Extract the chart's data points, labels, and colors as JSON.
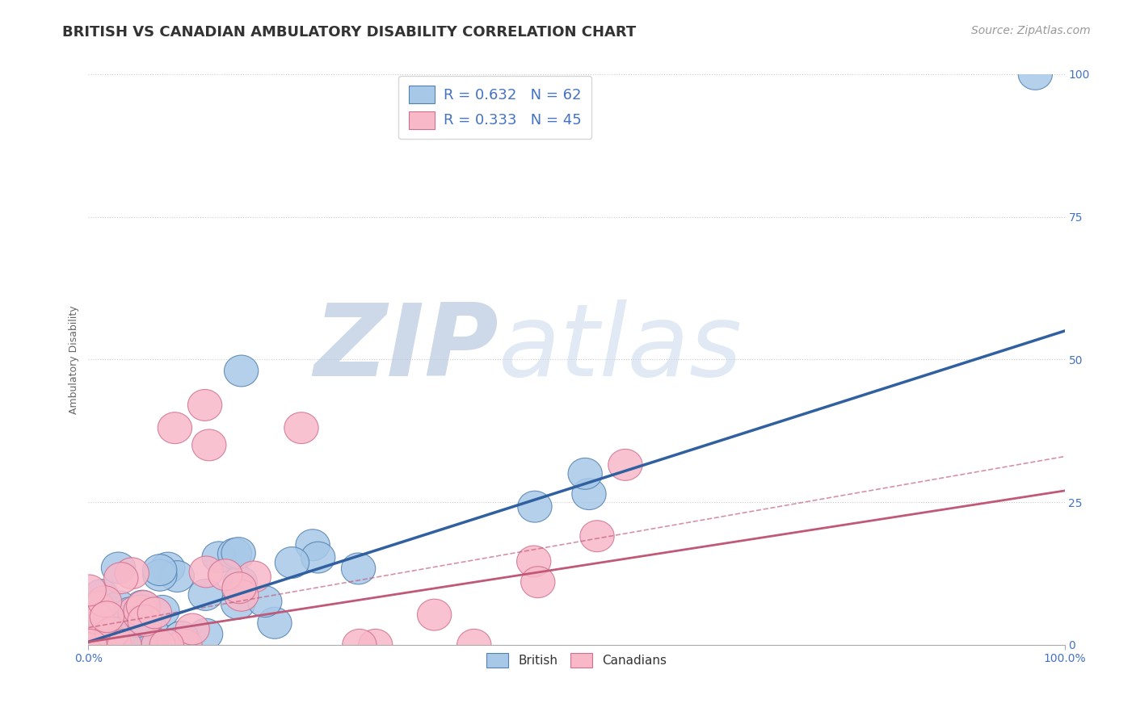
{
  "title": "BRITISH VS CANADIAN AMBULATORY DISABILITY CORRELATION CHART",
  "source": "Source: ZipAtlas.com",
  "ylabel": "Ambulatory Disability",
  "xlim": [
    0,
    100
  ],
  "ylim": [
    0,
    100
  ],
  "x_tick_labels": [
    "0.0%",
    "100.0%"
  ],
  "x_tick_positions": [
    0,
    100
  ],
  "y_tick_labels": [
    "0.0%",
    "25.0%",
    "50.0%",
    "75.0%",
    "100.0%"
  ],
  "y_tick_positions": [
    0,
    25,
    50,
    75,
    100
  ],
  "british_R": 0.632,
  "british_N": 62,
  "canadian_R": 0.333,
  "canadian_N": 45,
  "british_color": "#a8c8e8",
  "british_edge_color": "#5080b0",
  "british_line_color": "#3060a0",
  "canadian_color": "#f8b8c8",
  "canadian_edge_color": "#d07090",
  "canadian_line_color": "#c05878",
  "legend_text_color": "#4472c4",
  "bg_color": "#ffffff",
  "watermark_zip": "ZIP",
  "watermark_atlas": "atlas",
  "watermark_color": "#ccd8ec",
  "title_fontsize": 13,
  "source_fontsize": 10,
  "axis_label_fontsize": 9,
  "tick_fontsize": 10,
  "legend_fontsize": 13,
  "british_line_end_y": 55,
  "canadian_line_end_y": 27,
  "canadian_dashed_end_y": 33
}
